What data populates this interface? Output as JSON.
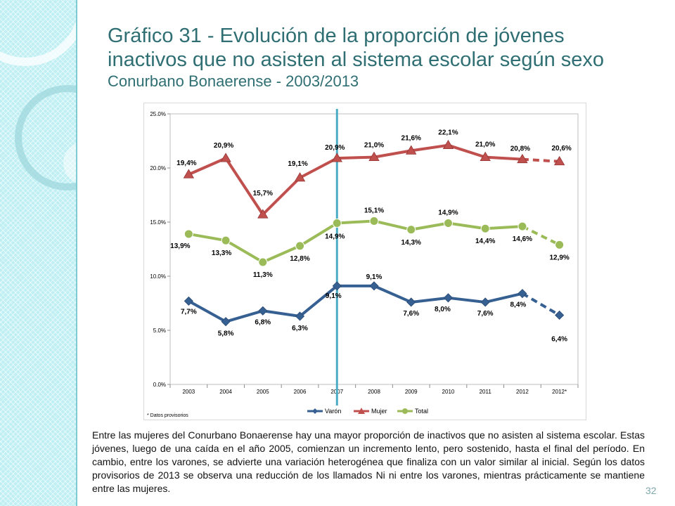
{
  "slide": {
    "title_line1": "Gráfico 31 - Evolución de la proporción de jóvenes",
    "title_line2": "inactivos que no asisten al sistema escolar según sexo",
    "subtitle": "Conurbano Bonaerense - 2003/2013",
    "body_text": "Entre las mujeres del Conurbano Bonaerense hay una mayor proporción de inactivos que no asisten al sistema escolar. Estas jóvenes, luego de una caída en el año 2005, comienzan un incremento lento, pero sostenido, hasta el final del período. En cambio, entre los varones, se advierte una variación heterogénea que finaliza con un valor similar al inicial. Según los datos provisorios de 2013 se observa una reducción de los llamados Ni ni entre los varones, mientras prácticamente se mantiene entre las mujeres.",
    "page_number": "32",
    "colors": {
      "title": "#2f6f73",
      "side_band": "#bfeff3",
      "accent": "#4bacc6"
    }
  },
  "chart_data": {
    "type": "line",
    "categories": [
      "2003",
      "2004",
      "2005",
      "2006",
      "2007",
      "2008",
      "2009",
      "2010",
      "2011",
      "2012",
      "2012*"
    ],
    "y_ticks": [
      "0.0%",
      "5.0%",
      "10.0%",
      "15.0%",
      "20.0%",
      "25.0%"
    ],
    "ylim": [
      0,
      25
    ],
    "footnote": "* Datos provisorios",
    "legend_position": "bottom",
    "dashed_last_segment": true,
    "reference_line_at": "2007",
    "series": [
      {
        "name": "Varón",
        "marker": "diamond",
        "color": "#376092",
        "values": [
          7.7,
          5.8,
          6.8,
          6.3,
          9.1,
          9.1,
          7.6,
          8.0,
          7.6,
          8.4,
          6.4
        ],
        "labels": [
          "7,7%",
          "5,8%",
          "6,8%",
          "6,3%",
          "9,1%",
          "9,1%",
          "7,6%",
          "8,0%",
          "7,6%",
          "8,4%",
          "6,4%"
        ]
      },
      {
        "name": "Mujer",
        "marker": "triangle",
        "color": "#c0504d",
        "values": [
          19.4,
          20.9,
          15.7,
          19.1,
          20.9,
          21.0,
          21.6,
          22.1,
          21.0,
          20.8,
          20.6
        ],
        "labels": [
          "19,4%",
          "20,9%",
          "15,7%",
          "19,1%",
          "20,9%",
          "21,0%",
          "21,6%",
          "22,1%",
          "21,0%",
          "20,8%",
          "20,6%"
        ]
      },
      {
        "name": "Total",
        "marker": "circle",
        "color": "#9bbb59",
        "values": [
          13.9,
          13.3,
          11.3,
          12.8,
          14.9,
          15.1,
          14.3,
          14.9,
          14.4,
          14.6,
          12.9
        ],
        "labels": [
          "13,9%",
          "13,3%",
          "11,3%",
          "12,8%",
          "14,9%",
          "15,1%",
          "14,3%",
          "14,9%",
          "14,4%",
          "14,6%",
          "12,9%"
        ]
      }
    ]
  }
}
